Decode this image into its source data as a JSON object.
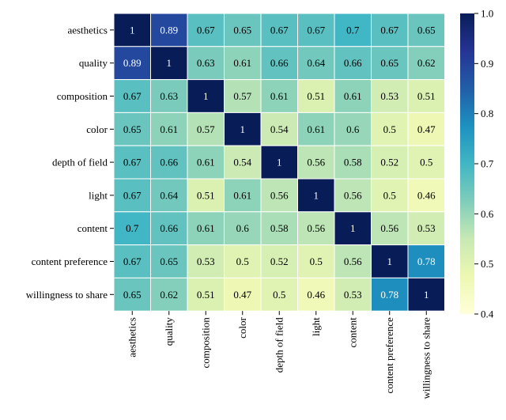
{
  "chart_data": {
    "type": "heatmap",
    "title": "",
    "xlabel": "",
    "ylabel": "",
    "rows": [
      "aesthetics",
      "quality",
      "composition",
      "color",
      "depth of field",
      "light",
      "content",
      "content preference",
      "willingness to share"
    ],
    "columns": [
      "aesthetics",
      "quality",
      "composition",
      "color",
      "depth of field",
      "light",
      "content",
      "content preference",
      "willingness to share"
    ],
    "values": [
      [
        1,
        0.89,
        0.67,
        0.65,
        0.67,
        0.67,
        0.7,
        0.67,
        0.65
      ],
      [
        0.89,
        1,
        0.63,
        0.61,
        0.66,
        0.64,
        0.66,
        0.65,
        0.62
      ],
      [
        0.67,
        0.63,
        1,
        0.57,
        0.61,
        0.51,
        0.61,
        0.53,
        0.51
      ],
      [
        0.65,
        0.61,
        0.57,
        1,
        0.54,
        0.61,
        0.6,
        0.5,
        0.47
      ],
      [
        0.67,
        0.66,
        0.61,
        0.54,
        1,
        0.56,
        0.58,
        0.52,
        0.5
      ],
      [
        0.67,
        0.64,
        0.51,
        0.61,
        0.56,
        1,
        0.56,
        0.5,
        0.46
      ],
      [
        0.7,
        0.66,
        0.61,
        0.6,
        0.58,
        0.56,
        1,
        0.56,
        0.53
      ],
      [
        0.67,
        0.65,
        0.53,
        0.5,
        0.52,
        0.5,
        0.56,
        1,
        0.78
      ],
      [
        0.65,
        0.62,
        0.51,
        0.47,
        0.5,
        0.46,
        0.53,
        0.78,
        1
      ]
    ],
    "value_labels": [
      [
        "1",
        "0.89",
        "0.67",
        "0.65",
        "0.67",
        "0.67",
        "0.7",
        "0.67",
        "0.65"
      ],
      [
        "0.89",
        "1",
        "0.63",
        "0.61",
        "0.66",
        "0.64",
        "0.66",
        "0.65",
        "0.62"
      ],
      [
        "0.67",
        "0.63",
        "1",
        "0.57",
        "0.61",
        "0.51",
        "0.61",
        "0.53",
        "0.51"
      ],
      [
        "0.65",
        "0.61",
        "0.57",
        "1",
        "0.54",
        "0.61",
        "0.6",
        "0.5",
        "0.47"
      ],
      [
        "0.67",
        "0.66",
        "0.61",
        "0.54",
        "1",
        "0.56",
        "0.58",
        "0.52",
        "0.5"
      ],
      [
        "0.67",
        "0.64",
        "0.51",
        "0.61",
        "0.56",
        "1",
        "0.56",
        "0.5",
        "0.46"
      ],
      [
        "0.7",
        "0.66",
        "0.61",
        "0.6",
        "0.58",
        "0.56",
        "1",
        "0.56",
        "0.53"
      ],
      [
        "0.67",
        "0.65",
        "0.53",
        "0.5",
        "0.52",
        "0.5",
        "0.56",
        "1",
        "0.78"
      ],
      [
        "0.65",
        "0.62",
        "0.51",
        "0.47",
        "0.5",
        "0.46",
        "0.53",
        "0.78",
        "1"
      ]
    ],
    "colormap": "YlGnBu",
    "colorbar": {
      "min": 0.4,
      "max": 1.0,
      "ticks": [
        0.4,
        0.5,
        0.6,
        0.7,
        0.8,
        0.9,
        1.0
      ],
      "tick_labels": [
        "0.4",
        "0.5",
        "0.6",
        "0.7",
        "0.8",
        "0.9",
        "1.0"
      ],
      "placement": "right"
    },
    "cell_border_color": "#ffffff",
    "colormap_stops": [
      "#ffffd9",
      "#edf8b1",
      "#c7e9b4",
      "#7fcdbb",
      "#41b6c4",
      "#1d91c0",
      "#225ea8",
      "#253494",
      "#081d58"
    ]
  }
}
